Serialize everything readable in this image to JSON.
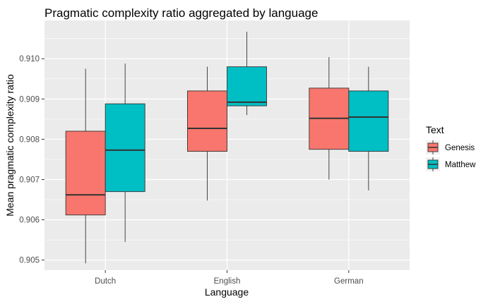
{
  "chart_data": {
    "type": "boxplot",
    "title": "Pragmatic complexity ratio aggregated by language",
    "xlabel": "Language",
    "ylabel": "Mean pragmatic complexity ratio",
    "categories": [
      "Dutch",
      "English",
      "German"
    ],
    "ylim": [
      0.90475,
      0.91095
    ],
    "yticks": [
      {
        "value": 0.905,
        "label": "0.905"
      },
      {
        "value": 0.906,
        "label": "0.906"
      },
      {
        "value": 0.907,
        "label": "0.907"
      },
      {
        "value": 0.908,
        "label": "0.908"
      },
      {
        "value": 0.909,
        "label": "0.909"
      },
      {
        "value": 0.91,
        "label": "0.910"
      }
    ],
    "grid": true,
    "legend": {
      "title": "Text",
      "position": "right"
    },
    "series": [
      {
        "name": "Genesis",
        "color": "#F8766D",
        "boxes": [
          {
            "category": "Dutch",
            "min": 0.90492,
            "q1": 0.90612,
            "median": 0.90662,
            "q3": 0.9082,
            "max": 0.90975
          },
          {
            "category": "English",
            "min": 0.90648,
            "q1": 0.9077,
            "median": 0.90827,
            "q3": 0.9092,
            "max": 0.9098
          },
          {
            "category": "German",
            "min": 0.907,
            "q1": 0.90775,
            "median": 0.90852,
            "q3": 0.90927,
            "max": 0.91004
          }
        ]
      },
      {
        "name": "Matthew",
        "color": "#00BFC4",
        "boxes": [
          {
            "category": "Dutch",
            "min": 0.90545,
            "q1": 0.9067,
            "median": 0.90773,
            "q3": 0.90888,
            "max": 0.90988
          },
          {
            "category": "English",
            "min": 0.9086,
            "q1": 0.90883,
            "median": 0.90892,
            "q3": 0.9098,
            "max": 0.91067
          },
          {
            "category": "German",
            "min": 0.90673,
            "q1": 0.9077,
            "median": 0.90855,
            "q3": 0.9092,
            "max": 0.9098
          }
        ]
      }
    ]
  }
}
